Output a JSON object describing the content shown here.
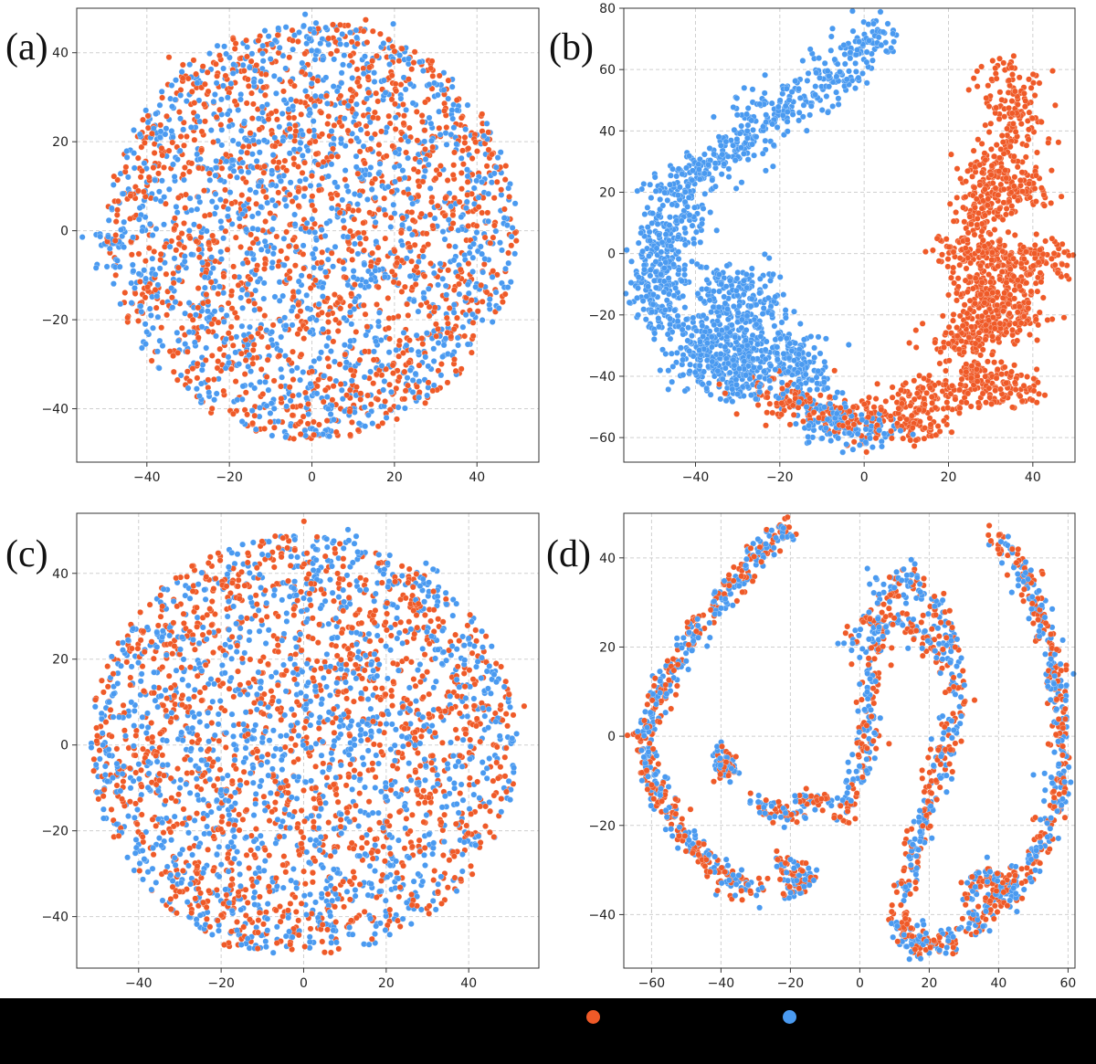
{
  "colors": {
    "series_a": "#ef5a28",
    "series_b": "#4a9af0",
    "grid": "#cfcfcf",
    "axis": "#333333",
    "legend_background": "#000000"
  },
  "legend": {
    "items": [
      {
        "label": "",
        "color": "#ef5a28"
      },
      {
        "label": "",
        "color": "#4a9af0"
      }
    ]
  },
  "chart_data": [
    {
      "panel_label": "(a)",
      "type": "scatter",
      "title": "",
      "xlabel": "",
      "ylabel": "",
      "xlim": [
        -57,
        55
      ],
      "ylim": [
        -52,
        50
      ],
      "xticks": [
        -40,
        -20,
        0,
        20,
        40
      ],
      "yticks": [
        -40,
        -20,
        0,
        20,
        40
      ],
      "grid": true,
      "distribution": "mixed",
      "point_count": 2600,
      "series": [
        {
          "name": "",
          "color": "#ef5a28",
          "points": [
            [
              -30,
              35
            ],
            [
              -10,
              12
            ],
            [
              5,
              -18
            ],
            [
              18,
              -34
            ],
            [
              25,
              22
            ],
            [
              -42,
              -14
            ],
            [
              8,
              45
            ],
            [
              -18,
              -30
            ],
            [
              32,
              5
            ],
            [
              -5,
              -42
            ],
            [
              12,
              28
            ],
            [
              -25,
              -5
            ]
          ]
        },
        {
          "name": "",
          "color": "#4a9af0",
          "points": [
            [
              -50,
              -2
            ],
            [
              -48,
              -6
            ],
            [
              0,
              46
            ],
            [
              19,
              40
            ],
            [
              40,
              10
            ],
            [
              -40,
              -12
            ],
            [
              2,
              -46
            ],
            [
              -22,
              15
            ],
            [
              15,
              -10
            ],
            [
              30,
              -25
            ],
            [
              -35,
              22
            ],
            [
              -8,
              -40
            ]
          ]
        }
      ]
    },
    {
      "panel_label": "(b)",
      "type": "scatter",
      "title": "",
      "xlabel": "",
      "ylabel": "",
      "xlim": [
        -57,
        50
      ],
      "ylim": [
        -68,
        80
      ],
      "xticks": [
        -40,
        -20,
        0,
        20,
        40
      ],
      "yticks": [
        -60,
        -40,
        -20,
        0,
        20,
        40,
        60,
        80
      ],
      "grid": true,
      "distribution": "separated",
      "point_count": 2800,
      "series": [
        {
          "name": "",
          "color": "#ef5a28",
          "points": [
            [
              32,
              60
            ],
            [
              35,
              50
            ],
            [
              37,
              38
            ],
            [
              32,
              28
            ],
            [
              26,
              24
            ],
            [
              40,
              22
            ],
            [
              30,
              16
            ],
            [
              24,
              8
            ],
            [
              22,
              0
            ],
            [
              37,
              0
            ],
            [
              45,
              -2
            ],
            [
              24,
              -12
            ],
            [
              34,
              -12
            ],
            [
              30,
              -24
            ],
            [
              40,
              -20
            ],
            [
              20,
              -28
            ],
            [
              28,
              -40
            ],
            [
              38,
              -45
            ],
            [
              22,
              -44
            ],
            [
              10,
              -48
            ],
            [
              15,
              -56
            ],
            [
              0,
              -55
            ],
            [
              -15,
              -48
            ],
            [
              -25,
              -46
            ]
          ]
        },
        {
          "name": "",
          "color": "#4a9af0",
          "points": [
            [
              4,
              72
            ],
            [
              0,
              68
            ],
            [
              -8,
              58
            ],
            [
              -15,
              52
            ],
            [
              -20,
              48
            ],
            [
              -26,
              42
            ],
            [
              -28,
              35
            ],
            [
              -35,
              30
            ],
            [
              -40,
              25
            ],
            [
              -46,
              20
            ],
            [
              -42,
              8
            ],
            [
              -50,
              5
            ],
            [
              -46,
              -5
            ],
            [
              -52,
              -12
            ],
            [
              -48,
              -18
            ],
            [
              -42,
              -28
            ],
            [
              -40,
              -38
            ],
            [
              -30,
              -35
            ],
            [
              -24,
              -20
            ],
            [
              -28,
              -8
            ],
            [
              -35,
              -10
            ],
            [
              -30,
              -44
            ],
            [
              -20,
              -38
            ],
            [
              -16,
              -30
            ],
            [
              -10,
              -54
            ],
            [
              -5,
              -58
            ],
            [
              5,
              -57
            ]
          ]
        }
      ]
    },
    {
      "panel_label": "(c)",
      "type": "scatter",
      "title": "",
      "xlabel": "",
      "ylabel": "",
      "xlim": [
        -55,
        57
      ],
      "ylim": [
        -52,
        54
      ],
      "xticks": [
        -40,
        -20,
        0,
        20,
        40
      ],
      "yticks": [
        -40,
        -20,
        0,
        20,
        40
      ],
      "grid": true,
      "distribution": "mixed",
      "point_count": 2600,
      "series": [
        {
          "name": "",
          "color": "#ef5a28",
          "points": [
            [
              -5,
              48
            ],
            [
              -22,
              40
            ],
            [
              -40,
              -2
            ],
            [
              30,
              -10
            ],
            [
              50,
              8
            ],
            [
              -25,
              -35
            ],
            [
              -15,
              -44
            ],
            [
              10,
              20
            ],
            [
              25,
              35
            ],
            [
              -30,
              10
            ],
            [
              0,
              -20
            ],
            [
              40,
              -20
            ]
          ]
        },
        {
          "name": "",
          "color": "#4a9af0",
          "points": [
            [
              -48,
              -8
            ],
            [
              10,
              45
            ],
            [
              -35,
              25
            ],
            [
              35,
              20
            ],
            [
              -10,
              0
            ],
            [
              20,
              -30
            ],
            [
              -40,
              -25
            ],
            [
              5,
              -40
            ],
            [
              45,
              15
            ],
            [
              -20,
              -15
            ],
            [
              15,
              5
            ],
            [
              30,
              40
            ]
          ]
        }
      ]
    },
    {
      "panel_label": "(d)",
      "type": "scatter",
      "title": "",
      "xlabel": "",
      "ylabel": "",
      "xlim": [
        -68,
        62
      ],
      "ylim": [
        -52,
        50
      ],
      "xticks": [
        -60,
        -40,
        -20,
        0,
        20,
        40,
        60
      ],
      "yticks": [
        -40,
        -20,
        0,
        20,
        40
      ],
      "grid": true,
      "distribution": "mixed_strands",
      "point_count": 3200,
      "series": [
        {
          "name": "",
          "color": "#ef5a28",
          "points": [
            [
              -20,
              47
            ],
            [
              -35,
              38
            ],
            [
              -48,
              25
            ],
            [
              -57,
              10
            ],
            [
              -62,
              -2
            ],
            [
              -55,
              -15
            ],
            [
              -45,
              -25
            ],
            [
              -38,
              -30
            ],
            [
              -28,
              -34
            ],
            [
              -5,
              -17
            ],
            [
              5,
              0
            ],
            [
              10,
              30
            ],
            [
              20,
              25
            ],
            [
              28,
              10
            ],
            [
              22,
              -5
            ],
            [
              15,
              -25
            ],
            [
              10,
              -40
            ],
            [
              25,
              -47
            ],
            [
              40,
              -40
            ],
            [
              50,
              -20
            ],
            [
              55,
              0
            ],
            [
              58,
              15
            ],
            [
              50,
              35
            ],
            [
              40,
              45
            ]
          ]
        },
        {
          "name": "",
          "color": "#4a9af0",
          "points": [
            [
              -22,
              46
            ],
            [
              -33,
              36
            ],
            [
              -50,
              20
            ],
            [
              -60,
              5
            ],
            [
              -58,
              -10
            ],
            [
              -50,
              -22
            ],
            [
              -40,
              -30
            ],
            [
              -22,
              -34
            ],
            [
              -15,
              -15
            ],
            [
              -2,
              -10
            ],
            [
              0,
              20
            ],
            [
              5,
              36
            ],
            [
              15,
              35
            ],
            [
              28,
              18
            ],
            [
              25,
              0
            ],
            [
              18,
              -20
            ],
            [
              12,
              -35
            ],
            [
              20,
              -46
            ],
            [
              35,
              -44
            ],
            [
              48,
              -30
            ],
            [
              54,
              -10
            ],
            [
              58,
              10
            ],
            [
              52,
              30
            ],
            [
              42,
              44
            ],
            [
              -40,
              -5
            ]
          ]
        }
      ]
    }
  ]
}
